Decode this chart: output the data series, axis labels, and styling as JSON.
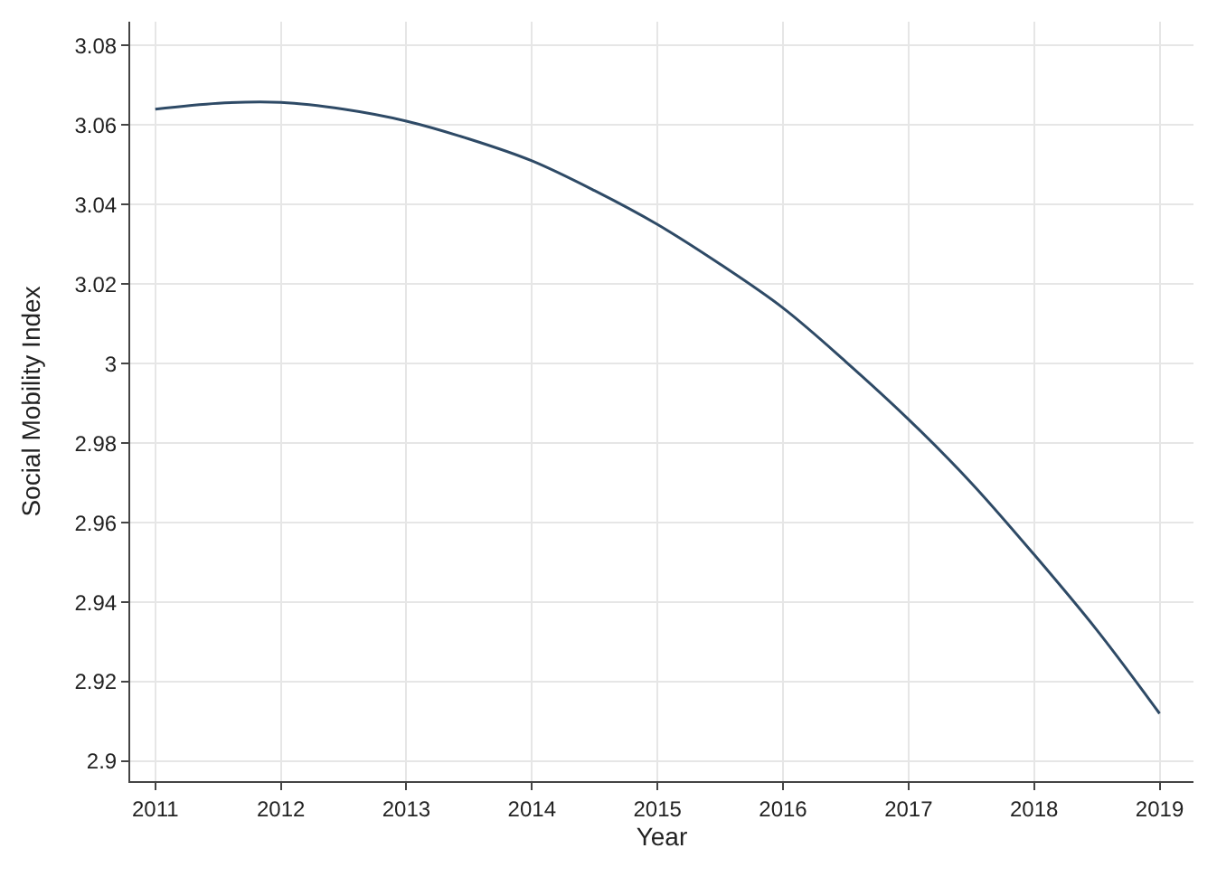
{
  "chart_data": {
    "type": "line",
    "xlabel": "Year",
    "ylabel": "Social Mobility Index",
    "x": [
      2011,
      2011.5,
      2012,
      2012.5,
      2013,
      2013.5,
      2014,
      2014.5,
      2015,
      2015.5,
      2016,
      2016.5,
      2017,
      2017.5,
      2018,
      2018.5,
      2019
    ],
    "series": [
      {
        "color": "#2e4a66",
        "values": [
          3.064,
          3.0655,
          3.0657,
          3.064,
          3.061,
          3.0565,
          3.051,
          3.0435,
          3.035,
          3.025,
          3.014,
          3.0005,
          2.986,
          2.97,
          2.952,
          2.933,
          2.912
        ]
      }
    ],
    "xlim": [
      2010.8,
      2019.27
    ],
    "xticks": [
      2011,
      2012,
      2013,
      2014,
      2015,
      2016,
      2017,
      2018,
      2019
    ],
    "ylim": [
      2.895,
      3.086
    ],
    "yticks": [
      2.9,
      2.92,
      2.94,
      2.96,
      2.98,
      {
        "value": 3,
        "label": "3"
      },
      3.02,
      3.04,
      3.06,
      3.08
    ],
    "grid": true,
    "marker": "none",
    "line_style": "solid"
  }
}
